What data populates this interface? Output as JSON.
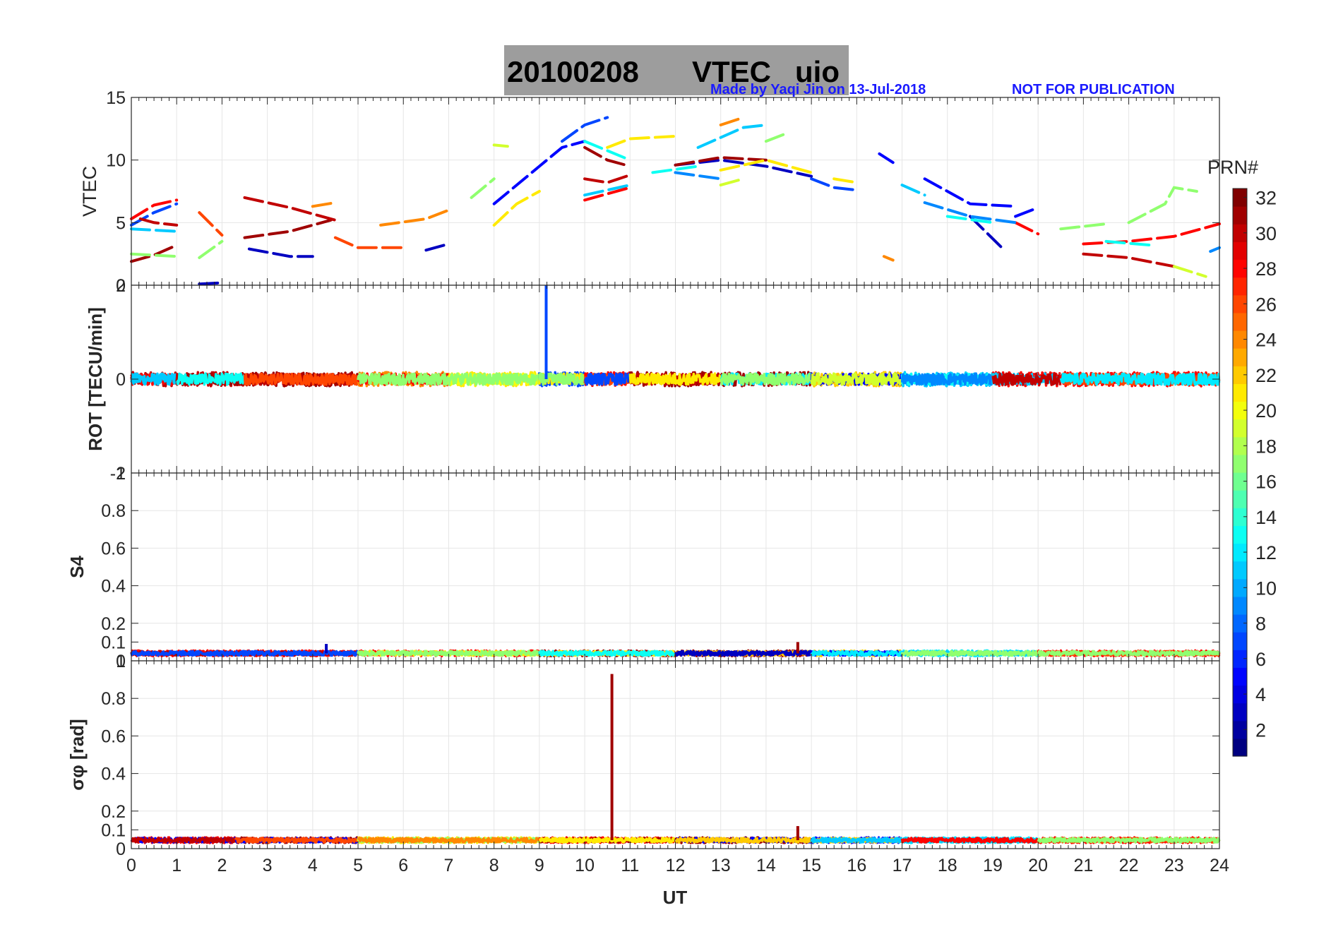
{
  "title": {
    "date": "20100208",
    "parameter": "VTEC",
    "station": "uio",
    "title_bg": "#9d9d9d"
  },
  "credit": {
    "author_text": "Made by Yaqi Jin on 13-Jul-2018",
    "notice_text": "NOT FOR PUBLICATION",
    "color": "#1a1aff"
  },
  "x_axis": {
    "label": "UT",
    "range": [
      0,
      24
    ],
    "ticks": [
      "0",
      "1",
      "2",
      "3",
      "4",
      "5",
      "6",
      "7",
      "8",
      "9",
      "10",
      "11",
      "12",
      "13",
      "14",
      "15",
      "16",
      "17",
      "18",
      "19",
      "20",
      "21",
      "22",
      "23",
      "24"
    ]
  },
  "colorbar": {
    "title": "PRN#",
    "range": [
      1,
      32
    ],
    "ticks": [
      "2",
      "4",
      "6",
      "8",
      "10",
      "12",
      "14",
      "16",
      "18",
      "20",
      "22",
      "24",
      "26",
      "28",
      "30",
      "32"
    ]
  },
  "chart_data": [
    {
      "type": "line",
      "panel": "vtec",
      "ylabel": "VTEC",
      "ylim": [
        0,
        15
      ],
      "yticks": [
        "0",
        "5",
        "10",
        "15"
      ],
      "grid": true,
      "series": [
        {
          "name": "PRN 7",
          "prn": 7,
          "segments": [
            [
              [
                0,
                4.8
              ],
              [
                0.5,
                5.8
              ],
              [
                1,
                6.5
              ]
            ],
            [
              [
                9.5,
                11.5
              ],
              [
                10,
                12.8
              ],
              [
                10.5,
                13.4
              ]
            ],
            [
              [
                15,
                8.5
              ],
              [
                15.5,
                7.8
              ],
              [
                16,
                7.6
              ]
            ]
          ]
        },
        {
          "name": "PRN 11",
          "prn": 11,
          "segments": [
            [
              [
                0,
                4.5
              ],
              [
                1,
                4.3
              ]
            ],
            [
              [
                10,
                7.2
              ],
              [
                11,
                8
              ]
            ],
            [
              [
                12.5,
                11
              ],
              [
                13.5,
                12.6
              ],
              [
                14,
                12.8
              ]
            ],
            [
              [
                17,
                8
              ],
              [
                17.5,
                7.2
              ]
            ]
          ]
        },
        {
          "name": "PRN 3",
          "prn": 3,
          "segments": [
            [
              [
                1.5,
                0.1
              ],
              [
                2,
                0.2
              ]
            ],
            [
              [
                2.6,
                2.9
              ],
              [
                3.5,
                2.3
              ],
              [
                4,
                2.3
              ]
            ],
            [
              [
                6.5,
                2.8
              ],
              [
                7,
                3.3
              ]
            ],
            [
              [
                12,
                9.6
              ],
              [
                13,
                10
              ],
              [
                14,
                9.5
              ],
              [
                15,
                8.7
              ]
            ],
            [
              [
                18.5,
                5.5
              ],
              [
                19.2,
                3
              ]
            ]
          ]
        },
        {
          "name": "PRN 28",
          "prn": 28,
          "segments": [
            [
              [
                0,
                5.3
              ],
              [
                0.5,
                6.4
              ],
              [
                1,
                6.8
              ]
            ],
            [
              [
                10,
                6.8
              ],
              [
                11,
                7.8
              ]
            ],
            [
              [
                19.5,
                5
              ],
              [
                20,
                4.1
              ]
            ],
            [
              [
                21,
                3.3
              ],
              [
                22,
                3.5
              ],
              [
                23,
                3.9
              ],
              [
                24,
                4.9
              ]
            ]
          ]
        },
        {
          "name": "PRN 31",
          "prn": 31,
          "segments": [
            [
              [
                0,
                1.9
              ],
              [
                0.5,
                2.4
              ],
              [
                1,
                3.2
              ]
            ],
            [
              [
                2.5,
                3.8
              ],
              [
                3.5,
                4.3
              ],
              [
                4.4,
                5.2
              ]
            ],
            [
              [
                10,
                11
              ],
              [
                10.5,
                10
              ],
              [
                11,
                9.5
              ]
            ],
            [
              [
                12,
                9.6
              ],
              [
                13,
                10.2
              ],
              [
                14,
                10
              ]
            ]
          ]
        },
        {
          "name": "PRN 24",
          "prn": 24,
          "segments": [
            [
              [
                4,
                6.3
              ],
              [
                4.5,
                6.6
              ]
            ],
            [
              [
                5.5,
                4.8
              ],
              [
                6.5,
                5.3
              ],
              [
                7,
                6
              ]
            ],
            [
              [
                13,
                12.8
              ],
              [
                13.5,
                13.4
              ]
            ],
            [
              [
                16.6,
                2.3
              ],
              [
                16.8,
                2
              ]
            ]
          ]
        },
        {
          "name": "PRN 17",
          "prn": 17,
          "segments": [
            [
              [
                0,
                2.5
              ],
              [
                1,
                2.3
              ]
            ],
            [
              [
                1.5,
                2.2
              ],
              [
                2,
                3.5
              ]
            ],
            [
              [
                7.5,
                7
              ],
              [
                8,
                8.5
              ]
            ],
            [
              [
                14,
                11.5
              ],
              [
                14.5,
                12.2
              ]
            ],
            [
              [
                20.5,
                4.5
              ],
              [
                21.5,
                4.9
              ]
            ],
            [
              [
                22,
                5
              ],
              [
                22.8,
                6.5
              ],
              [
                23,
                7.8
              ],
              [
                23.5,
                7.5
              ]
            ]
          ]
        },
        {
          "name": "PRN 21",
          "prn": 21,
          "segments": [
            [
              [
                8,
                4.8
              ],
              [
                8.5,
                6.5
              ],
              [
                9,
                7.5
              ]
            ],
            [
              [
                10.5,
                11
              ],
              [
                11,
                11.7
              ],
              [
                12,
                11.9
              ]
            ],
            [
              [
                13,
                9.2
              ],
              [
                14,
                10
              ],
              [
                15,
                9
              ]
            ],
            [
              [
                15.5,
                8.5
              ],
              [
                16,
                8.2
              ]
            ]
          ]
        },
        {
          "name": "PRN 5",
          "prn": 5,
          "segments": [
            [
              [
                8,
                6.5
              ],
              [
                9,
                9.5
              ],
              [
                9.5,
                11
              ],
              [
                10,
                11.5
              ]
            ],
            [
              [
                16.5,
                10.5
              ],
              [
                16.8,
                9.8
              ]
            ],
            [
              [
                17.5,
                8.5
              ],
              [
                18,
                7.5
              ],
              [
                18.5,
                6.5
              ],
              [
                19.5,
                6.3
              ]
            ],
            [
              [
                19.5,
                5.5
              ],
              [
                20,
                6.2
              ]
            ]
          ]
        },
        {
          "name": "PRN 30",
          "prn": 30,
          "segments": [
            [
              [
                0.2,
                5.3
              ],
              [
                0.5,
                5
              ],
              [
                1,
                4.8
              ]
            ],
            [
              [
                2.5,
                7
              ],
              [
                3.5,
                6.2
              ],
              [
                4.5,
                5.2
              ]
            ],
            [
              [
                10,
                8.5
              ],
              [
                10.5,
                8.2
              ],
              [
                11,
                8.8
              ]
            ],
            [
              [
                21,
                2.5
              ],
              [
                22,
                2.2
              ],
              [
                23,
                1.5
              ]
            ]
          ]
        },
        {
          "name": "PRN 13",
          "prn": 13,
          "segments": [
            [
              [
                10,
                11.5
              ],
              [
                11,
                10
              ]
            ],
            [
              [
                11.5,
                9
              ],
              [
                12.5,
                9.5
              ]
            ],
            [
              [
                18,
                5.5
              ],
              [
                19,
                5
              ]
            ],
            [
              [
                21.5,
                3.5
              ],
              [
                22.5,
                3.2
              ]
            ]
          ]
        },
        {
          "name": "PRN 9",
          "prn": 9,
          "segments": [
            [
              [
                17.5,
                6.6
              ],
              [
                18.5,
                5.5
              ],
              [
                19.5,
                5
              ]
            ],
            [
              [
                12,
                9
              ],
              [
                13,
                8.5
              ]
            ],
            [
              [
                23.8,
                2.7
              ],
              [
                24,
                3
              ]
            ]
          ]
        },
        {
          "name": "PRN 26",
          "prn": 26,
          "segments": [
            [
              [
                1.5,
                5.8
              ],
              [
                2,
                4
              ]
            ],
            [
              [
                4.5,
                3.8
              ],
              [
                5,
                3
              ],
              [
                6,
                3
              ]
            ]
          ]
        },
        {
          "name": "PRN 19",
          "prn": 19,
          "segments": [
            [
              [
                8,
                11.2
              ],
              [
                8.3,
                11.1
              ]
            ],
            [
              [
                13,
                8
              ],
              [
                13.5,
                8.5
              ]
            ],
            [
              [
                23,
                1.5
              ],
              [
                23.7,
                0.7
              ]
            ]
          ]
        }
      ]
    },
    {
      "type": "scatter",
      "panel": "rot",
      "ylabel": "ROT [TECU/min]",
      "ylim": [
        -2,
        2
      ],
      "yticks": [
        "-2",
        "0",
        "2"
      ],
      "grid": true,
      "baseline": 0,
      "noise_amplitude": 0.15,
      "spikes": [
        {
          "x": 9.15,
          "y": 2.0,
          "prn": 7
        }
      ],
      "prn_by_ut": [
        {
          "from": 0,
          "to": 1,
          "prns": [
            30,
            28,
            11
          ]
        },
        {
          "from": 1,
          "to": 2.5,
          "prns": [
            30,
            31,
            13
          ]
        },
        {
          "from": 2.5,
          "to": 5,
          "prns": [
            31,
            30,
            26
          ]
        },
        {
          "from": 5,
          "to": 7,
          "prns": [
            24,
            28,
            17
          ]
        },
        {
          "from": 7,
          "to": 9,
          "prns": [
            21,
            20,
            17
          ]
        },
        {
          "from": 9,
          "to": 10,
          "prns": [
            7,
            21,
            17
          ]
        },
        {
          "from": 10,
          "to": 11,
          "prns": [
            28,
            26,
            7
          ]
        },
        {
          "from": 11,
          "to": 13,
          "prns": [
            31,
            30,
            21
          ]
        },
        {
          "from": 13,
          "to": 15,
          "prns": [
            31,
            12,
            17
          ]
        },
        {
          "from": 15,
          "to": 17,
          "prns": [
            22,
            5,
            19
          ]
        },
        {
          "from": 17,
          "to": 19,
          "prns": [
            11,
            13,
            9
          ]
        },
        {
          "from": 19,
          "to": 20.5,
          "prns": [
            28,
            11,
            30
          ]
        },
        {
          "from": 20.5,
          "to": 24,
          "prns": [
            28,
            26,
            12
          ]
        }
      ]
    },
    {
      "type": "scatter",
      "panel": "s4",
      "ylabel": "S4",
      "ylim": [
        0,
        1
      ],
      "yticks": [
        "0",
        "0.1",
        "0.2",
        "0.4",
        "0.6",
        "0.8",
        "1"
      ],
      "grid": true,
      "baseline": 0.04,
      "noise_amplitude": 0.015,
      "spikes": [
        {
          "x": 14.7,
          "y": 0.1,
          "prn": 31
        },
        {
          "x": 4.3,
          "y": 0.09,
          "prn": 3
        }
      ],
      "prn_by_ut": [
        {
          "from": 0,
          "to": 5,
          "prns": [
            28,
            30,
            7
          ]
        },
        {
          "from": 5,
          "to": 9,
          "prns": [
            28,
            21,
            17
          ]
        },
        {
          "from": 9,
          "to": 12,
          "prns": [
            31,
            21,
            13
          ]
        },
        {
          "from": 12,
          "to": 15,
          "prns": [
            31,
            22,
            3
          ]
        },
        {
          "from": 15,
          "to": 17,
          "prns": [
            22,
            5,
            12
          ]
        },
        {
          "from": 17,
          "to": 20,
          "prns": [
            12,
            11,
            17
          ]
        },
        {
          "from": 20,
          "to": 24,
          "prns": [
            28,
            26,
            17
          ]
        }
      ]
    },
    {
      "type": "scatter",
      "panel": "sigma_phi",
      "ylabel": "σφ [rad]",
      "ylim": [
        0,
        1
      ],
      "yticks": [
        "0",
        "0.1",
        "0.2",
        "0.4",
        "0.6",
        "0.8",
        "1"
      ],
      "grid": true,
      "baseline": 0.045,
      "noise_amplitude": 0.015,
      "spikes": [
        {
          "x": 10.6,
          "y": 0.93,
          "prn": 31
        },
        {
          "x": 14.7,
          "y": 0.12,
          "prn": 31
        }
      ],
      "prn_by_ut": [
        {
          "from": 0,
          "to": 2.3,
          "prns": [
            28,
            5,
            30
          ]
        },
        {
          "from": 2.3,
          "to": 5,
          "prns": [
            31,
            5,
            26
          ]
        },
        {
          "from": 5,
          "to": 9,
          "prns": [
            21,
            17,
            24
          ]
        },
        {
          "from": 9,
          "to": 12,
          "prns": [
            28,
            31,
            21
          ]
        },
        {
          "from": 12,
          "to": 15,
          "prns": [
            31,
            5,
            22
          ]
        },
        {
          "from": 15,
          "to": 17,
          "prns": [
            5,
            22,
            11
          ]
        },
        {
          "from": 17,
          "to": 20,
          "prns": [
            12,
            11,
            28
          ]
        },
        {
          "from": 20,
          "to": 24,
          "prns": [
            28,
            26,
            17
          ]
        }
      ]
    }
  ]
}
